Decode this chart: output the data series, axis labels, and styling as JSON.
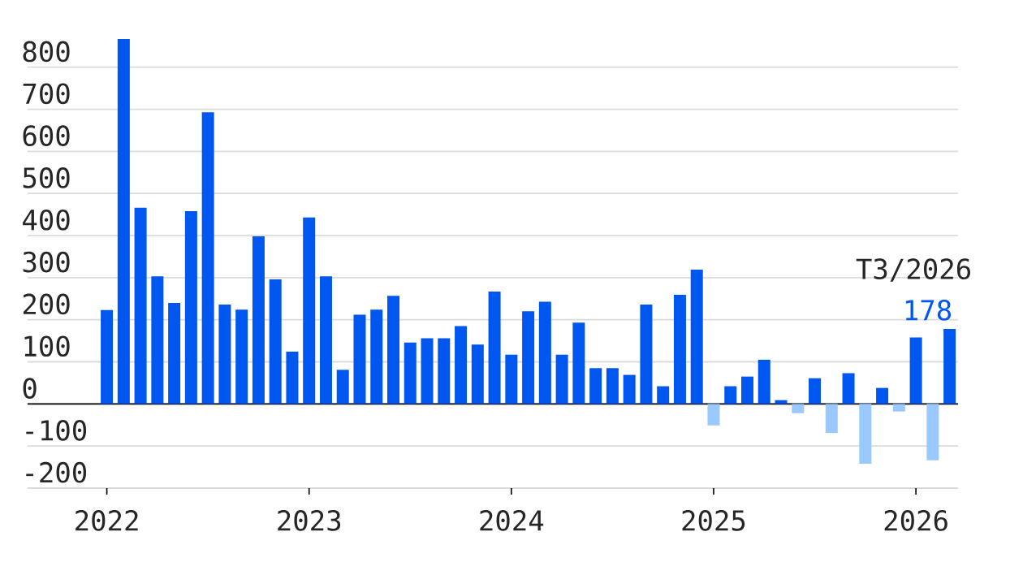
{
  "chart_data": {
    "type": "bar",
    "x": [
      "2022-01",
      "2022-02",
      "2022-03",
      "2022-04",
      "2022-05",
      "2022-06",
      "2022-07",
      "2022-08",
      "2022-09",
      "2022-10",
      "2022-11",
      "2022-12",
      "2023-01",
      "2023-02",
      "2023-03",
      "2023-04",
      "2023-05",
      "2023-06",
      "2023-07",
      "2023-08",
      "2023-09",
      "2023-10",
      "2023-11",
      "2023-12",
      "2024-01",
      "2024-02",
      "2024-03",
      "2024-04",
      "2024-05",
      "2024-06",
      "2024-07",
      "2024-08",
      "2024-09",
      "2024-10",
      "2024-11",
      "2024-12",
      "2025-01",
      "2025-02",
      "2025-03",
      "2025-04",
      "2025-05",
      "2025-06",
      "2025-07",
      "2025-08",
      "2025-09",
      "2025-10",
      "2025-11",
      "2025-12",
      "2026-01",
      "2026-02",
      "2026-03"
    ],
    "values": [
      223,
      867,
      466,
      303,
      240,
      458,
      693,
      236,
      224,
      398,
      296,
      124,
      443,
      303,
      81,
      212,
      224,
      257,
      146,
      156,
      156,
      185,
      141,
      267,
      117,
      220,
      243,
      117,
      193,
      85,
      85,
      69,
      236,
      42,
      259,
      319,
      -51,
      42,
      65,
      105,
      9,
      -22,
      61,
      -69,
      73,
      -142,
      38,
      -18,
      158,
      -134,
      178
    ],
    "colors": [
      "#0057f0",
      "#0057f0",
      "#0057f0",
      "#0057f0",
      "#0057f0",
      "#0057f0",
      "#0057f0",
      "#0057f0",
      "#0057f0",
      "#0057f0",
      "#0057f0",
      "#0057f0",
      "#0057f0",
      "#0057f0",
      "#0057f0",
      "#0057f0",
      "#0057f0",
      "#0057f0",
      "#0057f0",
      "#0057f0",
      "#0057f0",
      "#0057f0",
      "#0057f0",
      "#0057f0",
      "#0057f0",
      "#0057f0",
      "#0057f0",
      "#0057f0",
      "#0057f0",
      "#0057f0",
      "#0057f0",
      "#0057f0",
      "#0057f0",
      "#0057f0",
      "#0057f0",
      "#0057f0",
      "#99c9ff",
      "#0057f0",
      "#0057f0",
      "#0057f0",
      "#0057f0",
      "#99c9ff",
      "#0057f0",
      "#99c9ff",
      "#0057f0",
      "#99c9ff",
      "#0057f0",
      "#99c9ff",
      "#0057f0",
      "#99c9ff",
      "#0057f0"
    ],
    "value_labels": [
      null,
      null,
      null,
      null,
      null,
      null,
      null,
      null,
      null,
      null,
      null,
      null,
      null,
      null,
      null,
      null,
      null,
      null,
      null,
      null,
      null,
      null,
      null,
      null,
      null,
      null,
      null,
      null,
      null,
      null,
      null,
      null,
      null,
      null,
      null,
      null,
      null,
      null,
      null,
      null,
      null,
      null,
      null,
      null,
      null,
      null,
      null,
      null,
      null,
      null,
      "178"
    ],
    "annotations": [
      {
        "text": "T3/2026",
        "x": "2026-03",
        "y": 178
      }
    ],
    "xlim": [
      "2021-08-10",
      "2026-03-16"
    ],
    "xticks": [
      {
        "value": "2022-01",
        "label": "2022"
      },
      {
        "value": "2023-01",
        "label": "2023"
      },
      {
        "value": "2024-01",
        "label": "2024"
      },
      {
        "value": "2025-01",
        "label": "2025"
      },
      {
        "value": "2026-01",
        "label": "2026"
      }
    ],
    "ylim": [
      -200,
      867
    ],
    "yticks": [
      -200,
      -100,
      0,
      100,
      200,
      300,
      400,
      500,
      600,
      700,
      800
    ],
    "grid": "y"
  }
}
